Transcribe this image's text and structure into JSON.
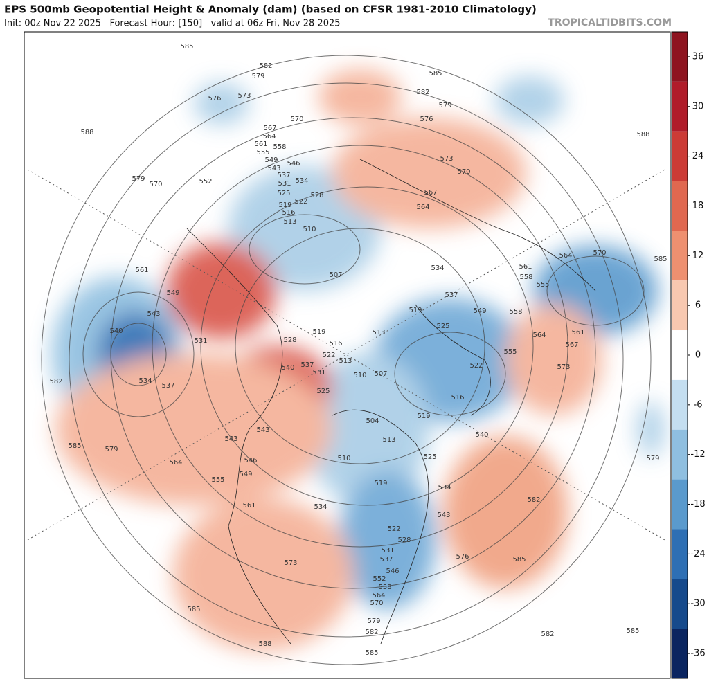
{
  "header": {
    "title": "EPS 500mb Geopotential Height & Anomaly (dam) (based on CFSR 1981-2010 Climatology)",
    "subtitle": "Init: 00z Nov 22 2025   Forecast Hour: [150]   valid at 06z Fri, Nov 28 2025",
    "credit": "TROPICALTIDBITS.COM"
  },
  "colorbar": {
    "range": [
      -39,
      39
    ],
    "ticks": [
      36,
      30,
      24,
      18,
      12,
      6,
      0,
      -6,
      -12,
      -18,
      -24,
      -30,
      -36
    ],
    "colors": [
      "#8e1420",
      "#b01c2a",
      "#cc3b36",
      "#e06850",
      "#ee9070",
      "#f8c8b0",
      "#ffffff",
      "#c4def0",
      "#8fbfe0",
      "#5a9acd",
      "#2e6fb4",
      "#164a8c",
      "#0b2560"
    ]
  },
  "map": {
    "contour_labels": [
      585,
      582,
      579,
      585,
      582,
      579,
      576,
      576,
      573,
      570,
      567,
      564,
      561,
      558,
      555,
      549,
      546,
      543,
      537,
      534,
      531,
      528,
      525,
      522,
      519,
      516,
      513,
      510,
      507,
      588,
      579,
      570,
      552,
      573,
      570,
      567,
      564,
      588,
      585,
      570,
      564,
      561,
      558,
      555,
      561,
      564,
      567,
      573,
      579,
      534,
      537,
      519,
      525,
      549,
      558,
      522,
      516,
      555,
      540,
      525,
      519,
      507,
      510,
      513,
      519,
      516,
      522,
      513,
      528,
      540,
      537,
      531,
      525,
      561,
      549,
      543,
      540,
      531,
      534,
      537,
      582,
      585,
      579,
      543,
      543,
      546,
      549,
      564,
      555,
      561,
      504,
      513,
      510,
      519,
      534,
      534,
      543,
      582,
      576,
      585,
      522,
      528,
      531,
      537,
      546,
      552,
      558,
      564,
      570,
      579,
      582,
      585,
      573,
      585,
      588,
      582,
      585
    ]
  }
}
